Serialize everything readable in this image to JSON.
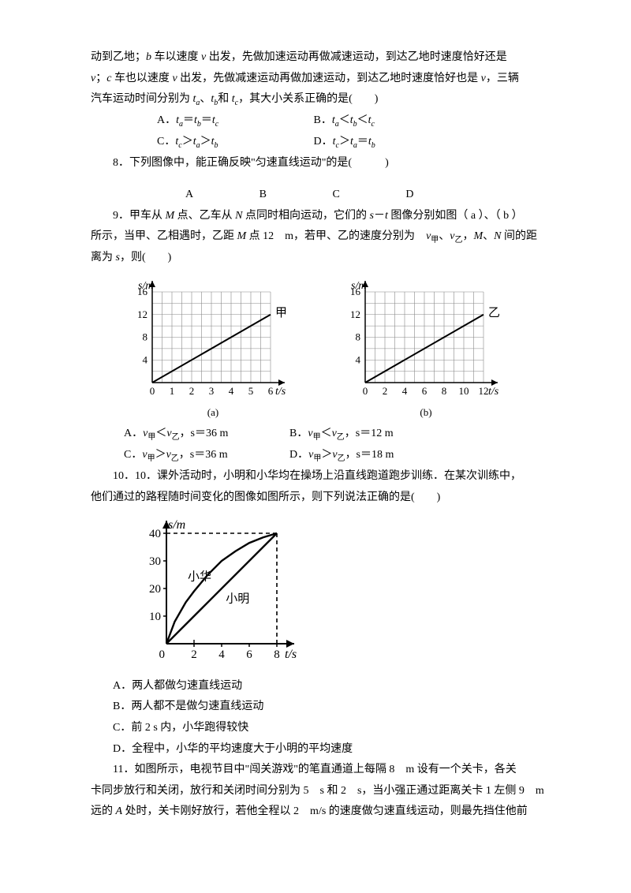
{
  "intro": {
    "line1_pre": "动到乙地；",
    "line1_b": "b",
    "line1_mid1": " 车以速度 ",
    "line1_v": "v",
    "line1_mid2": " 出发，先做加速运动再做减速运动，到达乙地时速度恰好还是",
    "line2_v2": "v",
    "line2_mid1": "；",
    "line2_c": "c",
    "line2_mid2": " 车也以速度 ",
    "line2_v3": "v",
    "line2_mid3": " 出发，先做减速运动再做加速运动，到达乙地时速度恰好也是 ",
    "line2_v4": "v",
    "line2_end": "，三辆",
    "line3_pre": "汽车运动时间分别为 ",
    "line3_ta": "t",
    "line3_a": "a",
    "line3_s1": "、",
    "line3_tb": "t",
    "line3_b2": "b",
    "line3_s2": "和 ",
    "line3_tc": "t",
    "line3_c2": "c",
    "line3_end": "，其大小关系正确的是(　　)"
  },
  "q7opts": {
    "A_pre": "A．",
    "A_t1": "t",
    "A_s1": "a",
    "A_eq": "＝",
    "A_t2": "t",
    "A_s2": "b",
    "A_eq2": "＝",
    "A_t3": "t",
    "A_s3": "c",
    "B_pre": "B．",
    "B_t1": "t",
    "B_s1": "a",
    "B_lt": "＜",
    "B_t2": "t",
    "B_s2": "b",
    "B_lt2": "＜",
    "B_t3": "t",
    "B_s3": "c",
    "C_pre": "C．",
    "C_t1": "t",
    "C_s1": "c",
    "C_gt": "＞",
    "C_t2": "t",
    "C_s2": "a",
    "C_gt2": "＞",
    "C_t3": "t",
    "C_s3": "b",
    "D_pre": "D．",
    "D_t1": "t",
    "D_s1": "c",
    "D_gt": "＞",
    "D_t2": "t",
    "D_s2": "a",
    "D_eq": "＝",
    "D_t3": "t",
    "D_s3": "b"
  },
  "q8": {
    "text": "8．下列图像中，能正确反映\"匀速直线运动\"的是(　　　)",
    "A": "A",
    "B": "B",
    "C": "C",
    "D": "D",
    "gapA": 120,
    "gapB": 80,
    "gapC": 80,
    "gapD": 80
  },
  "q9": {
    "line1_pre": "9．甲车从 ",
    "line1_M": "M",
    "line1_m1": " 点、乙车从 ",
    "line1_N": "N",
    "line1_m2": " 点同时相向运动，它们的 ",
    "line1_s": "s",
    "line1_dash": "－",
    "line1_t": "t",
    "line1_m3": " 图像分别如图（ a ）、（ b ）",
    "line2_pre": "所示，当甲、乙相遇时，乙距 ",
    "line2_M": "M",
    "line2_m1": " 点 12　m，若甲、乙的速度分别为　",
    "line2_v1": "v",
    "line2_sub1": "甲",
    "line2_s1": "、",
    "line2_v2": "v",
    "line2_sub2": "乙",
    "line2_s2": "，",
    "line2_M2": "M",
    "line2_s3": "、",
    "line2_N2": "N",
    "line2_m2": " 间的距",
    "line3": "离为 ",
    "line3_s": "s",
    "line3_end": "，则(　　)"
  },
  "chartA": {
    "axis_y": "s/m",
    "axis_x": "t/s",
    "label": "甲",
    "caption": "(a)",
    "yticks": [
      4,
      8,
      12,
      16
    ],
    "xticks": [
      0,
      1,
      2,
      3,
      4,
      5,
      6
    ],
    "xmax": 6,
    "ymax": 16,
    "gridx": 12,
    "gridy": 8,
    "line": [
      [
        0,
        0
      ],
      [
        6,
        12
      ]
    ],
    "widthpx": 210,
    "heightpx": 160,
    "colors": {
      "grid": "#888",
      "axis": "#000",
      "line": "#000",
      "text": "#000",
      "bg": "#fff"
    }
  },
  "chartB": {
    "axis_y": "s/m",
    "axis_x": "t/s",
    "label": "乙",
    "caption": "(b)",
    "yticks": [
      4,
      8,
      12,
      16
    ],
    "xticks": [
      0,
      2,
      4,
      6,
      8,
      10,
      12
    ],
    "xmax": 12,
    "ymax": 16,
    "gridx": 12,
    "gridy": 8,
    "line": [
      [
        0,
        0
      ],
      [
        12,
        12
      ]
    ],
    "widthpx": 210,
    "heightpx": 160,
    "colors": {
      "grid": "#888",
      "axis": "#000",
      "line": "#000",
      "text": "#000",
      "bg": "#fff"
    }
  },
  "q9opts": {
    "A_pre": "A．",
    "A_v1": "v",
    "A_s1": "甲",
    "A_lt": "＜",
    "A_v2": "v",
    "A_s2": "乙",
    "A_end": "，s＝36 m",
    "B_pre": "B．",
    "B_v1": "v",
    "B_s1": "甲",
    "B_lt": "＜",
    "B_v2": "v",
    "B_s2": "乙",
    "B_end": "，s＝12 m",
    "C_pre": "C．",
    "C_v1": "v",
    "C_s1": "甲",
    "C_gt": "＞",
    "C_v2": "v",
    "C_s2": "乙",
    "C_end": "，s＝36 m",
    "D_pre": "D．",
    "D_v1": "v",
    "D_s1": "甲",
    "D_gt": "＞",
    "D_v2": "v",
    "D_s2": "乙",
    "D_end": "，s＝18 m"
  },
  "q10": {
    "line1": "10．10．课外活动时，小明和小华均在操场上沿直线跑道跑步训练．在某次训练中，",
    "line2": "他们通过的路程随时间变化的图像如图所示，则下列说法正确的是(　　)"
  },
  "chart10": {
    "axis_y": "s/m",
    "axis_x": "t/s",
    "yticks": [
      10,
      20,
      30,
      40
    ],
    "xticks": [
      2,
      4,
      6,
      8
    ],
    "xmax": 8,
    "ymax": 40,
    "label1": "小华",
    "label2": "小明",
    "widthpx": 230,
    "heightpx": 190,
    "hua": [
      [
        0,
        0
      ],
      [
        0.6,
        8
      ],
      [
        1.4,
        15
      ],
      [
        2,
        19
      ],
      [
        3,
        25
      ],
      [
        4,
        30
      ],
      [
        5,
        33.5
      ],
      [
        6,
        36.5
      ],
      [
        7,
        38.5
      ],
      [
        8,
        40
      ]
    ],
    "ming": [
      [
        0,
        0
      ],
      [
        8,
        40
      ]
    ],
    "dash1": [
      [
        0,
        40
      ],
      [
        8,
        40
      ]
    ],
    "dash2": [
      [
        8,
        0
      ],
      [
        8,
        40
      ]
    ],
    "dashxtick": [
      [
        2,
        0
      ],
      [
        2,
        2
      ]
    ],
    "colors": {
      "axis": "#000",
      "line": "#000",
      "text": "#000",
      "bg": "#fff"
    }
  },
  "q10opts": {
    "A": "A．两人都做匀速直线运动",
    "B": "B．两人都不是做匀速直线运动",
    "C": "C．前 2 s 内，小华跑得较快",
    "D": "D．全程中，小华的平均速度大于小明的平均速度"
  },
  "q11": {
    "line1": "11．如图所示，电视节目中\"闯关游戏\"的笔直通道上每隔 8　m 设有一个关卡，各关",
    "line2": "卡同步放行和关闭，放行和关闭时间分别为 5　s 和 2　s，当小强正通过距离关卡 1 左侧 9　m",
    "line3_pre": "远的 ",
    "line3_A": "A",
    "line3_mid": " 处时，关卡刚好放行，若他全程以 2　m/s 的速度做匀速直线运动，则最先挡住他前"
  }
}
